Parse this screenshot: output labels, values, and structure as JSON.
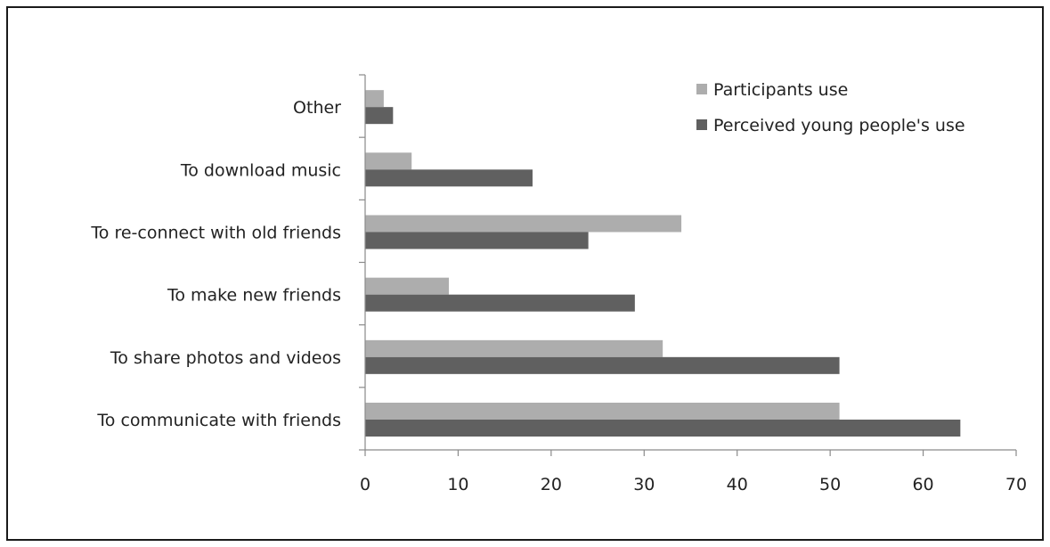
{
  "chart_data": {
    "type": "bar",
    "orientation": "horizontal",
    "categories": [
      "To communicate with friends",
      "To share photos and videos",
      "To make new friends",
      "To re-connect with old friends",
      "To download music",
      "Other"
    ],
    "series": [
      {
        "name": "Participants use",
        "color": "#adadad",
        "values": [
          51,
          32,
          9,
          34,
          5,
          2
        ]
      },
      {
        "name": "Perceived young people's use",
        "color": "#606060",
        "values": [
          64,
          51,
          29,
          24,
          18,
          3
        ]
      }
    ],
    "xlim": [
      0,
      70
    ],
    "xticks": [
      "0",
      "10",
      "20",
      "30",
      "40",
      "50",
      "60",
      "70"
    ],
    "grid": false,
    "legend_position": "top-right"
  }
}
